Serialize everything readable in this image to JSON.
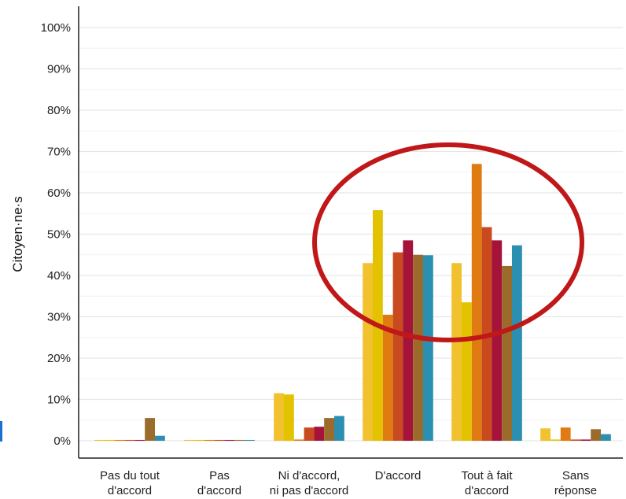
{
  "chart_data": {
    "type": "bar",
    "ylabel": "Citoyen·ne·s",
    "xlabel": "",
    "ylim": [
      0,
      100
    ],
    "yticks": [
      "0%",
      "10%",
      "20%",
      "30%",
      "40%",
      "50%",
      "60%",
      "70%",
      "80%",
      "90%",
      "100%"
    ],
    "grid": true,
    "categories": [
      [
        "Pas du tout",
        "d'accord"
      ],
      [
        "Pas",
        "d'accord"
      ],
      [
        "Ni d'accord,",
        "ni pas d'accord"
      ],
      [
        "D'accord"
      ],
      [
        "Tout à fait",
        "d'accord"
      ],
      [
        "Sans",
        "réponse"
      ]
    ],
    "series": [
      {
        "color": "#F2C12E",
        "values": [
          0.2,
          0.2,
          11.5,
          43,
          43,
          3
        ]
      },
      {
        "color": "#E3C200",
        "values": [
          0.2,
          0.2,
          11.2,
          55.8,
          33.5,
          0.3
        ]
      },
      {
        "color": "#E07B12",
        "values": [
          0.2,
          0.2,
          0.3,
          30.5,
          67,
          3.2
        ]
      },
      {
        "color": "#C94A1E",
        "values": [
          0.2,
          0.2,
          3.2,
          45.6,
          51.7,
          0.3
        ]
      },
      {
        "color": "#A6133A",
        "values": [
          0.2,
          0.2,
          3.4,
          48.5,
          48.5,
          0.3
        ]
      },
      {
        "color": "#9A6B2A",
        "values": [
          5.5,
          0.2,
          5.5,
          45,
          42.3,
          2.8
        ]
      },
      {
        "color": "#2A8FB0",
        "values": [
          1.2,
          0.2,
          6,
          44.9,
          47.3,
          1.6
        ]
      }
    ],
    "annotation": {
      "shape": "ellipse",
      "color": "#C01818",
      "encloses": [
        "D'accord",
        "Tout à fait d'accord"
      ]
    }
  }
}
